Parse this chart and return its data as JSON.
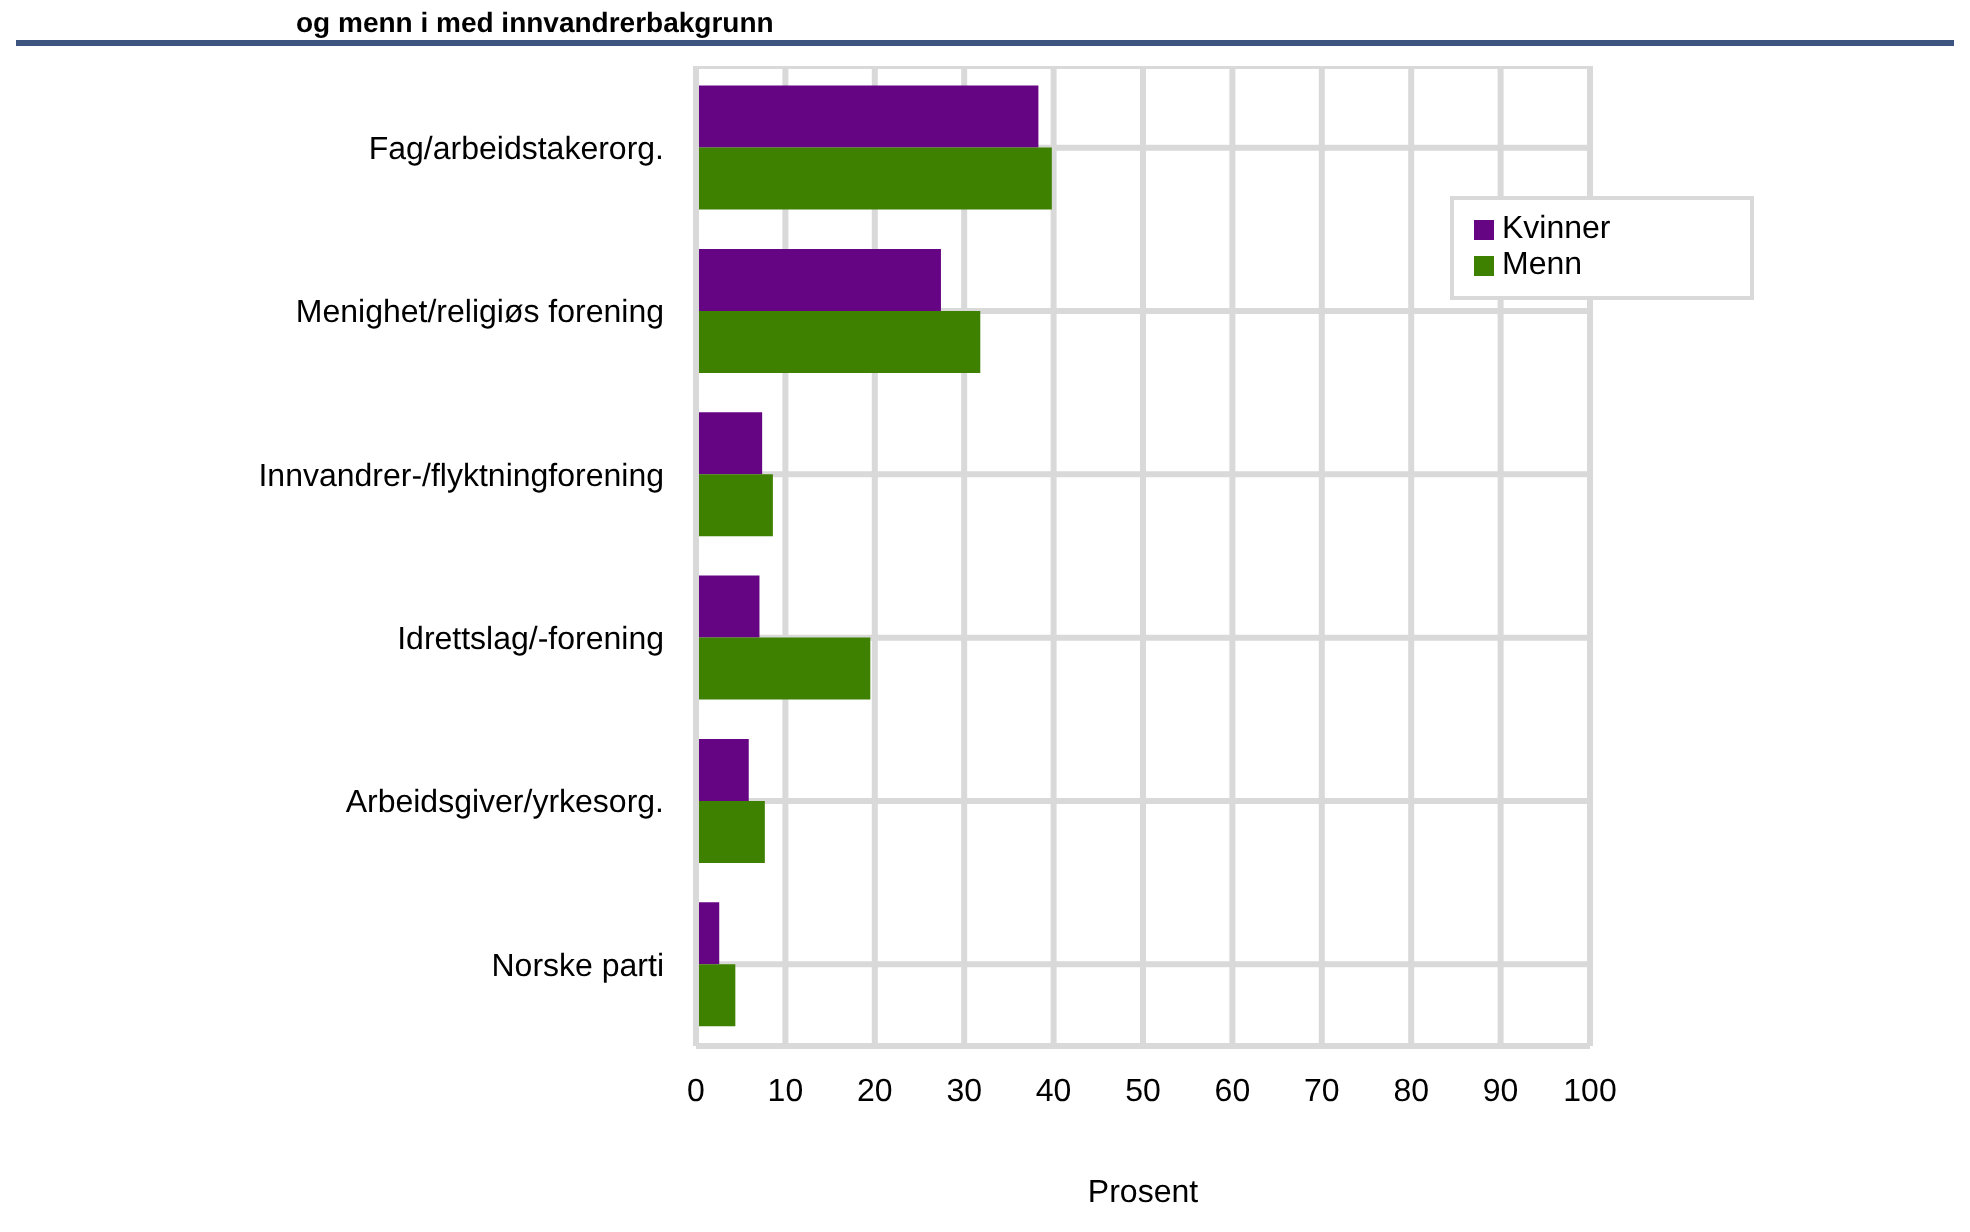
{
  "chart_data": {
    "type": "bar",
    "orientation": "horizontal",
    "title": "og menn i med innvandrerbakgrunn",
    "xlabel": "Prosent",
    "categories": [
      "Fag/arbeidstakerorg.",
      "Menighet/religiøs forening",
      "Innvandrer-/flyktningforening",
      "Idrettslag/-forening",
      "Arbeidsgiver/yrkesorg.",
      "Norske parti"
    ],
    "series": [
      {
        "name": "Kvinner",
        "color": "#660584",
        "values": [
          38.3,
          27.4,
          7.4,
          7.1,
          5.9,
          2.6
        ]
      },
      {
        "name": "Menn",
        "color": "#3e8100",
        "values": [
          39.8,
          31.8,
          8.6,
          19.5,
          7.7,
          4.4
        ]
      }
    ],
    "xlim": [
      0,
      100
    ],
    "xticks": [
      0,
      10,
      20,
      30,
      40,
      50,
      60,
      70,
      80,
      90,
      100
    ],
    "grid": true,
    "legend": "top right"
  }
}
